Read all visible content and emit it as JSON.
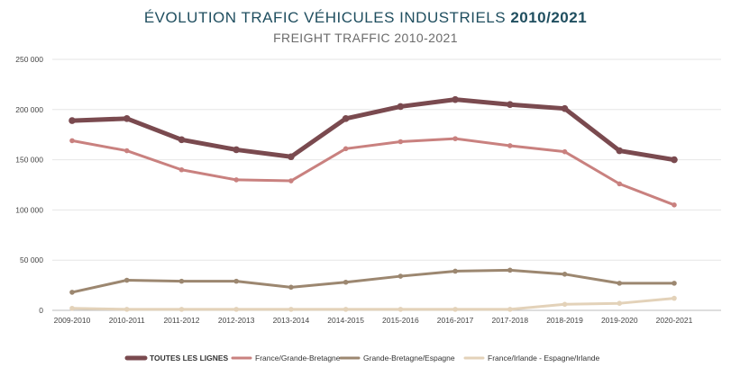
{
  "chart_data": {
    "type": "line",
    "title": "ÉVOLUTION TRAFIC VÉHICULES INDUSTRIELS",
    "title_years": "2010/2021",
    "subtitle": "FREIGHT TRAFFIC 2010-2021",
    "categories": [
      "2009-2010",
      "2010-2011",
      "2011-2012",
      "2012-2013",
      "2013-2014",
      "2014-2015",
      "2015-2016",
      "2016-2017",
      "2017-2018",
      "2018-2019",
      "2019-2020",
      "2020-2021"
    ],
    "ylim": [
      0,
      250000
    ],
    "yticks": [
      0,
      50000,
      100000,
      150000,
      200000,
      250000
    ],
    "ytick_labels": [
      "0",
      "50 000",
      "100 000",
      "150 000",
      "200 000",
      "250 000"
    ],
    "grid": true,
    "legend_position": "bottom",
    "series": [
      {
        "name": "TOUTES LES LIGNES",
        "color": "#7a4a4f",
        "bold": true,
        "values": [
          189000,
          191000,
          170000,
          160000,
          153000,
          191000,
          203000,
          210000,
          205000,
          201000,
          159000,
          150000
        ]
      },
      {
        "name": "France/Grande-Bretagne",
        "color": "#c9817f",
        "bold": false,
        "values": [
          169000,
          159000,
          140000,
          130000,
          129000,
          161000,
          168000,
          171000,
          164000,
          158000,
          126000,
          105000
        ]
      },
      {
        "name": "Grande-Bretagne/Espagne",
        "color": "#9c8770",
        "bold": false,
        "values": [
          18000,
          30000,
          29000,
          29000,
          23000,
          28000,
          34000,
          39000,
          40000,
          36000,
          27000,
          27000
        ]
      },
      {
        "name": "France/Irlande - Espagne/Irlande",
        "color": "#e3d2b9",
        "bold": false,
        "values": [
          2000,
          1000,
          1000,
          1000,
          1000,
          1000,
          1000,
          1000,
          1000,
          6000,
          7000,
          12000
        ]
      }
    ]
  }
}
